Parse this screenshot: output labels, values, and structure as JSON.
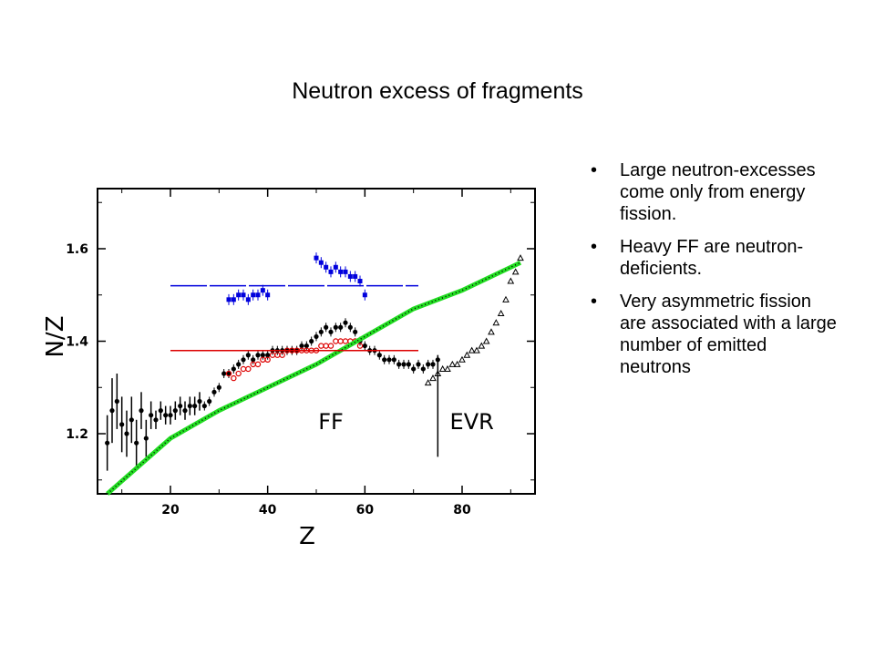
{
  "slide": {
    "title": "Neutron excess of fragments",
    "bullets": [
      "Large neutron-excesses come only from energy fission.",
      "Heavy FF are neutron-deficients.",
      "Very asymmetric fission are associated with a large number of emitted neutrons"
    ],
    "bullet_glyph": "•"
  },
  "chart_data": {
    "type": "scatter",
    "xlabel": "Z",
    "ylabel": "N̄/Z",
    "xlim": [
      5,
      95
    ],
    "ylim": [
      1.07,
      1.73
    ],
    "xticks": [
      20,
      40,
      60,
      80
    ],
    "yticks": [
      1.2,
      1.4,
      1.6
    ],
    "ytick_labels": [
      "1.2",
      "1.4",
      "1.6"
    ],
    "xtick_labels": [
      "20",
      "40",
      "60",
      "80"
    ],
    "grid": false,
    "region_labels": [
      {
        "text": "FF",
        "x": 53,
        "y": 1.21
      },
      {
        "text": "EVR",
        "x": 82,
        "y": 1.21
      }
    ],
    "divider_x": 75,
    "divider_y": [
      1.15,
      1.37
    ],
    "series": [
      {
        "marker": "filled-circle",
        "color": "#000000",
        "points": [
          [
            7,
            1.18
          ],
          [
            8,
            1.25
          ],
          [
            9,
            1.27
          ],
          [
            10,
            1.22
          ],
          [
            11,
            1.2
          ],
          [
            12,
            1.23
          ],
          [
            13,
            1.18
          ],
          [
            14,
            1.25
          ],
          [
            15,
            1.19
          ],
          [
            16,
            1.24
          ],
          [
            17,
            1.23
          ],
          [
            18,
            1.25
          ],
          [
            19,
            1.24
          ],
          [
            20,
            1.24
          ],
          [
            21,
            1.25
          ],
          [
            22,
            1.26
          ],
          [
            23,
            1.25
          ],
          [
            24,
            1.26
          ],
          [
            25,
            1.26
          ],
          [
            26,
            1.27
          ],
          [
            27,
            1.26
          ],
          [
            28,
            1.27
          ],
          [
            29,
            1.29
          ],
          [
            30,
            1.3
          ],
          [
            31,
            1.33
          ],
          [
            32,
            1.33
          ],
          [
            33,
            1.34
          ],
          [
            34,
            1.35
          ],
          [
            35,
            1.36
          ],
          [
            36,
            1.37
          ],
          [
            37,
            1.36
          ],
          [
            38,
            1.37
          ],
          [
            39,
            1.37
          ],
          [
            40,
            1.37
          ],
          [
            41,
            1.38
          ],
          [
            42,
            1.38
          ],
          [
            43,
            1.38
          ],
          [
            44,
            1.38
          ],
          [
            45,
            1.38
          ],
          [
            46,
            1.38
          ],
          [
            47,
            1.39
          ],
          [
            48,
            1.39
          ],
          [
            49,
            1.4
          ],
          [
            50,
            1.41
          ],
          [
            51,
            1.42
          ],
          [
            52,
            1.43
          ],
          [
            53,
            1.42
          ],
          [
            54,
            1.43
          ],
          [
            55,
            1.43
          ],
          [
            56,
            1.44
          ],
          [
            57,
            1.43
          ],
          [
            58,
            1.42
          ],
          [
            59,
            1.4
          ],
          [
            60,
            1.39
          ],
          [
            61,
            1.38
          ],
          [
            62,
            1.38
          ],
          [
            63,
            1.37
          ],
          [
            64,
            1.36
          ],
          [
            65,
            1.36
          ],
          [
            66,
            1.36
          ],
          [
            67,
            1.35
          ],
          [
            68,
            1.35
          ],
          [
            69,
            1.35
          ],
          [
            70,
            1.34
          ],
          [
            71,
            1.35
          ],
          [
            72,
            1.34
          ],
          [
            73,
            1.35
          ],
          [
            74,
            1.35
          ],
          [
            75,
            1.36
          ]
        ],
        "errors": [
          [
            7,
            0.06
          ],
          [
            8,
            0.07
          ],
          [
            9,
            0.06
          ],
          [
            10,
            0.06
          ],
          [
            11,
            0.05
          ],
          [
            12,
            0.05
          ],
          [
            13,
            0.05
          ],
          [
            14,
            0.04
          ],
          [
            15,
            0.04
          ],
          [
            16,
            0.03
          ],
          [
            17,
            0.02
          ],
          [
            18,
            0.02
          ],
          [
            19,
            0.02
          ],
          [
            20,
            0.02
          ],
          [
            21,
            0.02
          ],
          [
            22,
            0.02
          ],
          [
            23,
            0.02
          ],
          [
            24,
            0.02
          ],
          [
            25,
            0.02
          ],
          [
            26,
            0.02
          ]
        ]
      },
      {
        "marker": "open-circle",
        "color": "#dd0000",
        "points": [
          [
            32,
            1.33
          ],
          [
            33,
            1.32
          ],
          [
            34,
            1.33
          ],
          [
            35,
            1.34
          ],
          [
            36,
            1.34
          ],
          [
            37,
            1.35
          ],
          [
            38,
            1.35
          ],
          [
            39,
            1.36
          ],
          [
            40,
            1.36
          ],
          [
            41,
            1.37
          ],
          [
            42,
            1.37
          ],
          [
            43,
            1.37
          ],
          [
            44,
            1.38
          ],
          [
            45,
            1.38
          ],
          [
            46,
            1.38
          ],
          [
            47,
            1.38
          ],
          [
            48,
            1.38
          ],
          [
            49,
            1.38
          ],
          [
            50,
            1.38
          ],
          [
            51,
            1.39
          ],
          [
            52,
            1.39
          ],
          [
            53,
            1.39
          ],
          [
            54,
            1.4
          ],
          [
            55,
            1.4
          ],
          [
            56,
            1.4
          ],
          [
            57,
            1.4
          ],
          [
            58,
            1.4
          ],
          [
            59,
            1.39
          ]
        ]
      },
      {
        "marker": "filled-square",
        "color": "#0000dd",
        "points": [
          [
            32,
            1.49
          ],
          [
            33,
            1.49
          ],
          [
            34,
            1.5
          ],
          [
            35,
            1.5
          ],
          [
            36,
            1.49
          ],
          [
            37,
            1.5
          ],
          [
            38,
            1.5
          ],
          [
            39,
            1.51
          ],
          [
            40,
            1.5
          ],
          [
            50,
            1.58
          ],
          [
            51,
            1.57
          ],
          [
            52,
            1.56
          ],
          [
            53,
            1.55
          ],
          [
            54,
            1.56
          ],
          [
            55,
            1.55
          ],
          [
            56,
            1.55
          ],
          [
            57,
            1.54
          ],
          [
            58,
            1.54
          ],
          [
            59,
            1.53
          ],
          [
            60,
            1.5
          ]
        ]
      },
      {
        "marker": "open-triangle",
        "color": "#000000",
        "points": [
          [
            73,
            1.31
          ],
          [
            74,
            1.32
          ],
          [
            75,
            1.33
          ],
          [
            76,
            1.34
          ],
          [
            77,
            1.34
          ],
          [
            78,
            1.35
          ],
          [
            79,
            1.35
          ],
          [
            80,
            1.36
          ],
          [
            81,
            1.37
          ],
          [
            82,
            1.38
          ],
          [
            83,
            1.38
          ],
          [
            84,
            1.39
          ],
          [
            85,
            1.4
          ],
          [
            86,
            1.42
          ],
          [
            87,
            1.44
          ],
          [
            88,
            1.46
          ],
          [
            89,
            1.49
          ],
          [
            90,
            1.53
          ],
          [
            91,
            1.55
          ],
          [
            92,
            1.58
          ]
        ]
      },
      {
        "marker": "line",
        "color": "#22dd22",
        "points": [
          [
            7,
            1.07
          ],
          [
            20,
            1.19
          ],
          [
            30,
            1.25
          ],
          [
            40,
            1.3
          ],
          [
            50,
            1.35
          ],
          [
            60,
            1.41
          ],
          [
            70,
            1.47
          ],
          [
            80,
            1.51
          ],
          [
            92,
            1.57
          ]
        ]
      },
      {
        "marker": "dotted-line",
        "color": "#000000",
        "points": [
          [
            7,
            1.07
          ],
          [
            20,
            1.19
          ],
          [
            30,
            1.25
          ],
          [
            40,
            1.3
          ],
          [
            50,
            1.35
          ],
          [
            60,
            1.41
          ],
          [
            70,
            1.47
          ],
          [
            80,
            1.51
          ],
          [
            92,
            1.57
          ]
        ]
      },
      {
        "marker": "hline",
        "color": "#0000dd",
        "points": [
          [
            20,
            1.52
          ],
          [
            71,
            1.52
          ]
        ]
      },
      {
        "marker": "hline",
        "color": "#dd0000",
        "points": [
          [
            20,
            1.38
          ],
          [
            71,
            1.38
          ]
        ]
      }
    ]
  }
}
